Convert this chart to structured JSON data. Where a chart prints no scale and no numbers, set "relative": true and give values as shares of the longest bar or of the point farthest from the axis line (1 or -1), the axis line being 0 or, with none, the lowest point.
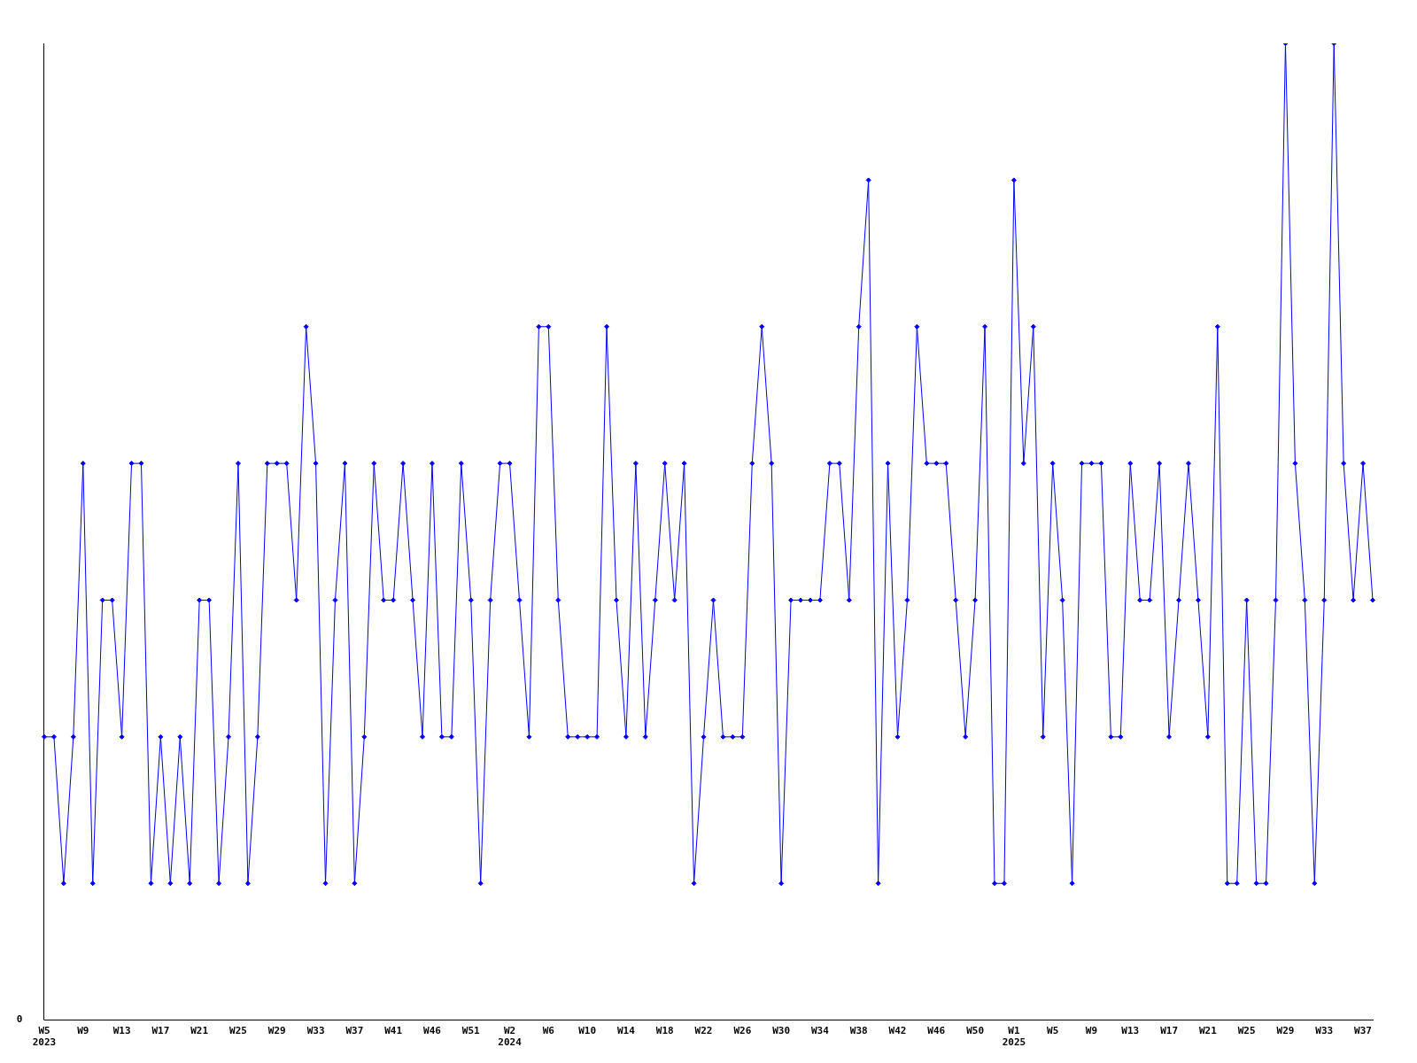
{
  "chart_data": {
    "type": "line",
    "relative": true,
    "color": "#0000ff",
    "marker": "diamond",
    "line_style": "solid",
    "grid": false,
    "legend": false,
    "annotations": [
      "0"
    ],
    "categories": [
      "W5 2023",
      null,
      null,
      null,
      "W9",
      null,
      null,
      null,
      "W13",
      null,
      null,
      null,
      "W17",
      null,
      null,
      null,
      "W21",
      null,
      null,
      null,
      "W25",
      null,
      null,
      null,
      "W29",
      null,
      null,
      null,
      "W33",
      null,
      null,
      null,
      "W37",
      null,
      null,
      null,
      "W41",
      null,
      null,
      null,
      "W46",
      null,
      null,
      null,
      "W51",
      null,
      null,
      null,
      "W2 2024",
      null,
      null,
      null,
      "W6",
      null,
      null,
      null,
      "W10",
      null,
      null,
      null,
      "W14",
      null,
      null,
      null,
      "W18",
      null,
      null,
      null,
      "W22",
      null,
      null,
      null,
      "W26",
      null,
      null,
      null,
      "W30",
      null,
      null,
      null,
      "W34",
      null,
      null,
      null,
      "W38",
      null,
      null,
      null,
      "W42",
      null,
      null,
      null,
      "W46",
      null,
      null,
      null,
      "W50",
      null,
      null,
      null,
      "W1 2025",
      null,
      null,
      null,
      "W5",
      null,
      null,
      null,
      "W9",
      null,
      null,
      null,
      "W13",
      null,
      null,
      null,
      "W17",
      null,
      null,
      null,
      "W21",
      null,
      null,
      null,
      "W25",
      null,
      null,
      null,
      "W29",
      null,
      null,
      null,
      "W33",
      null,
      null,
      null,
      "W37",
      null
    ],
    "values": [
      0.29,
      0.29,
      0.14,
      0.29,
      0.57,
      0.14,
      0.43,
      0.43,
      0.29,
      0.57,
      0.57,
      0.14,
      0.29,
      0.14,
      0.29,
      0.14,
      0.43,
      0.43,
      0.14,
      0.29,
      0.57,
      0.14,
      0.29,
      0.57,
      0.57,
      0.57,
      0.43,
      0.71,
      0.57,
      0.14,
      0.43,
      0.57,
      0.14,
      0.29,
      0.57,
      0.43,
      0.43,
      0.57,
      0.43,
      0.29,
      0.57,
      0.29,
      0.29,
      0.57,
      0.43,
      0.14,
      0.43,
      0.57,
      0.57,
      0.43,
      0.29,
      0.71,
      0.71,
      0.43,
      0.29,
      0.29,
      0.29,
      0.29,
      0.71,
      0.43,
      0.29,
      0.57,
      0.29,
      0.43,
      0.57,
      0.43,
      0.57,
      0.14,
      0.29,
      0.43,
      0.29,
      0.29,
      0.29,
      0.57,
      0.71,
      0.57,
      0.14,
      0.43,
      0.43,
      0.43,
      0.43,
      0.57,
      0.57,
      0.43,
      0.71,
      0.86,
      0.14,
      0.57,
      0.29,
      0.43,
      0.71,
      0.57,
      0.57,
      0.57,
      0.43,
      0.29,
      0.43,
      0.71,
      0.14,
      0.14,
      0.86,
      0.57,
      0.71,
      0.29,
      0.57,
      0.43,
      0.14,
      0.57,
      0.57,
      0.57,
      0.29,
      0.29,
      0.57,
      0.43,
      0.43,
      0.57,
      0.29,
      0.43,
      0.57,
      0.43,
      0.29,
      0.71,
      0.14,
      0.14,
      0.43,
      0.14,
      0.14,
      0.43,
      1,
      0.57,
      0.43,
      0.14,
      0.43,
      1,
      0.57,
      0.43,
      0.57,
      0.43
    ]
  }
}
